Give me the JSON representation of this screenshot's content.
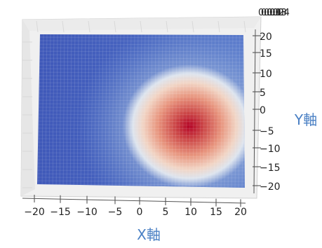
{
  "chart_data": {
    "type": "surface3d",
    "title": "",
    "xlabel": "X軸",
    "ylabel": "Y軸",
    "xlim": [
      -22,
      22
    ],
    "ylim": [
      -22,
      22
    ],
    "x_ticks": [
      "−20",
      "−15",
      "−10",
      "−5",
      "0",
      "5",
      "10",
      "15",
      "20"
    ],
    "y_ticks": [
      "20",
      "15",
      "10",
      "5",
      "0",
      "−5",
      "−10",
      "−15",
      "−20"
    ],
    "colormap": "coolwarm",
    "surface": {
      "form": "gaussian peak",
      "peak_x": 11,
      "peak_y": -4,
      "spread": 7.5,
      "grid_lines": "on"
    },
    "colors": {
      "axis_label": "#4a80c4",
      "tick_label": "#222222",
      "low": "#3b4cc0",
      "mid": "#dddddd",
      "high": "#b40426"
    }
  }
}
